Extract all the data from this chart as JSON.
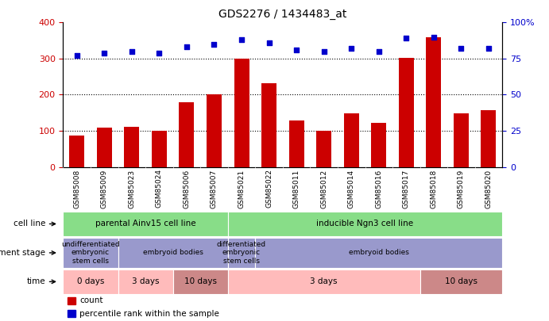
{
  "title": "GDS2276 / 1434483_at",
  "samples": [
    "GSM85008",
    "GSM85009",
    "GSM85023",
    "GSM85024",
    "GSM85006",
    "GSM85007",
    "GSM85021",
    "GSM85022",
    "GSM85011",
    "GSM85012",
    "GSM85014",
    "GSM85016",
    "GSM85017",
    "GSM85018",
    "GSM85019",
    "GSM85020"
  ],
  "counts": [
    88,
    108,
    110,
    100,
    178,
    202,
    300,
    232,
    128,
    100,
    148,
    122,
    302,
    360,
    148,
    158
  ],
  "percentiles": [
    77,
    79,
    80,
    79,
    83,
    85,
    88,
    86,
    81,
    80,
    82,
    80,
    89,
    90,
    82,
    82
  ],
  "bar_color": "#cc0000",
  "dot_color": "#0000cc",
  "ylim_left": [
    0,
    400
  ],
  "ylim_right": [
    0,
    100
  ],
  "yticks_left": [
    0,
    100,
    200,
    300,
    400
  ],
  "yticks_right": [
    0,
    25,
    50,
    75,
    100
  ],
  "grid_values": [
    100,
    200,
    300
  ],
  "cell_line_groups": [
    {
      "label": "parental Ainv15 cell line",
      "start": 0,
      "end": 6
    },
    {
      "label": "inducible Ngn3 cell line",
      "start": 6,
      "end": 16
    }
  ],
  "dev_stage_groups": [
    {
      "label": "undifferentiated\nembryonic\nstem cells",
      "start": 0,
      "end": 2
    },
    {
      "label": "embryoid bodies",
      "start": 2,
      "end": 6
    },
    {
      "label": "differentiated\nembryonic\nstem cells",
      "start": 6,
      "end": 7
    },
    {
      "label": "embryoid bodies",
      "start": 7,
      "end": 16
    }
  ],
  "time_groups": [
    {
      "label": "0 days",
      "start": 0,
      "end": 2,
      "dark": false
    },
    {
      "label": "3 days",
      "start": 2,
      "end": 4,
      "dark": false
    },
    {
      "label": "10 days",
      "start": 4,
      "end": 6,
      "dark": true
    },
    {
      "label": "3 days",
      "start": 6,
      "end": 13,
      "dark": false
    },
    {
      "label": "10 days",
      "start": 13,
      "end": 16,
      "dark": true
    }
  ],
  "cell_line_color": "#88dd88",
  "dev_stage_color": "#9999cc",
  "time_light_color": "#ffbbbb",
  "time_dark_color": "#cc8888",
  "legend_items": [
    {
      "color": "#cc0000",
      "label": "count"
    },
    {
      "color": "#0000cc",
      "label": "percentile rank within the sample"
    }
  ],
  "background_color": "#ffffff",
  "plot_bg_color": "#ffffff",
  "xticklabels_bg": "#cccccc"
}
